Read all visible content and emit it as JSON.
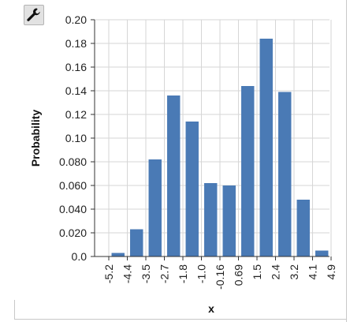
{
  "toolbar": {
    "icon": "wrench-icon"
  },
  "chart_data": {
    "type": "bar",
    "xlabel": "x",
    "ylabel": "Probability",
    "ylim": [
      0,
      0.2
    ],
    "yticks": [
      "0.0",
      "0.020",
      "0.040",
      "0.060",
      "0.080",
      "0.10",
      "0.12",
      "0.14",
      "0.16",
      "0.18",
      "0.20"
    ],
    "xticks": [
      "-5.2",
      "-4.4",
      "-3.5",
      "-2.7",
      "-1.8",
      "-1.0",
      "-0.16",
      "0.69",
      "1.5",
      "2.4",
      "3.2",
      "4.1",
      "4.9"
    ],
    "values": [
      0.003,
      0.023,
      0.082,
      0.136,
      0.114,
      0.062,
      0.06,
      0.144,
      0.184,
      0.139,
      0.048,
      0.005
    ],
    "bar_color": "#4a7ab5",
    "grid": true
  }
}
